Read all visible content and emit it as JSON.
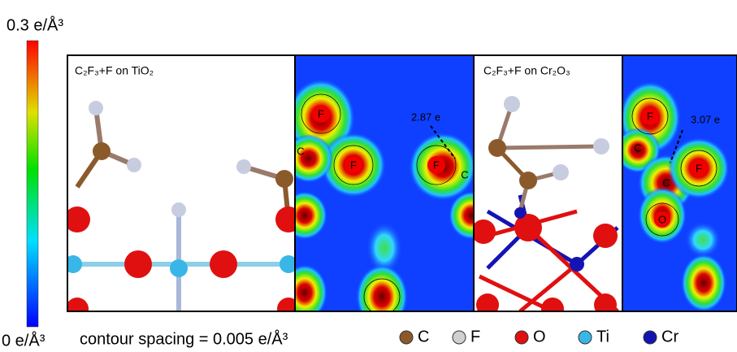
{
  "colorbar": {
    "max_label": "0.3 e/Å³",
    "min_label": "0 e/Å³"
  },
  "contour_note": "contour spacing = 0.005 e/Å³",
  "panels": [
    {
      "label": "C₂F₃+F on TiO₂",
      "charge": "2.87 e",
      "atoms": [
        "F",
        "C",
        "F",
        "F",
        "C"
      ]
    },
    {
      "label": "C₂F₃+F on Cr₂O₃",
      "charge": "3.07 e",
      "atoms": [
        "F",
        "C",
        "C",
        "F",
        "O"
      ]
    }
  ],
  "legend": [
    {
      "label": "C",
      "color": "#8b5a2b"
    },
    {
      "label": "F",
      "color": "#d0d0d0"
    },
    {
      "label": "O",
      "color": "#e01010"
    },
    {
      "label": "Ti",
      "color": "#38b6e8"
    },
    {
      "label": "Cr",
      "color": "#1414b4"
    }
  ]
}
